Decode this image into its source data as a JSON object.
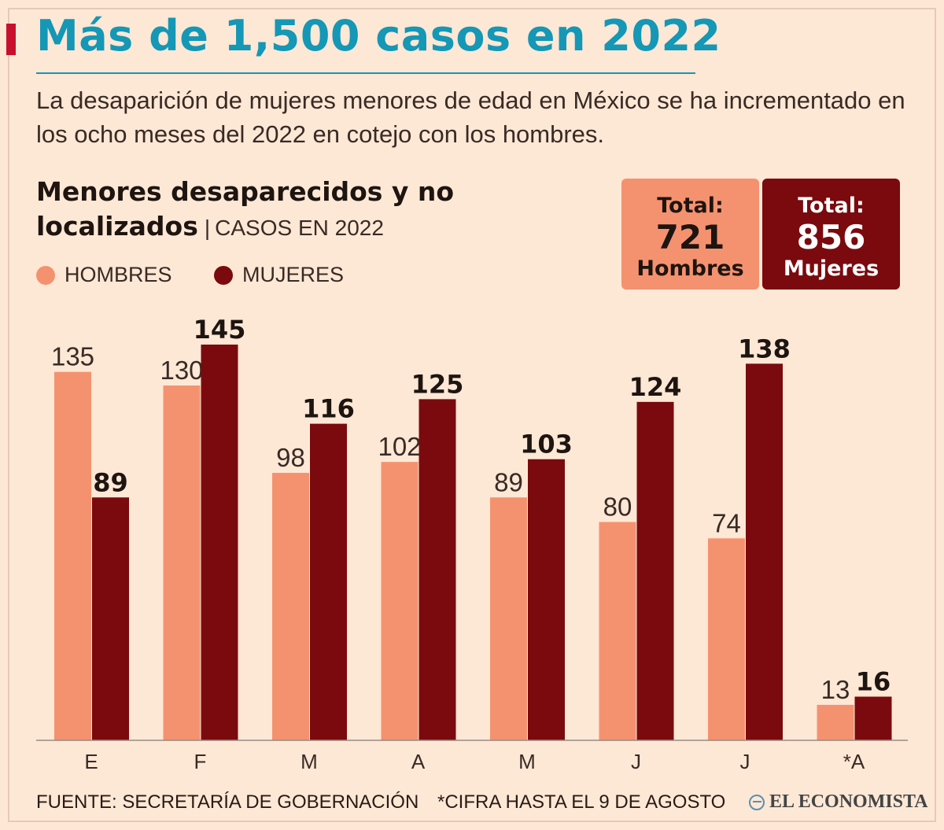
{
  "header": {
    "title": "Más de 1,500 casos en 2022",
    "subtitle": "La desaparición de mujeres menores de edad en México se ha incrementado en los ocho meses del 2022 en cotejo con los hombres."
  },
  "chart_header": {
    "title": "Menores desaparecidos y no localizados",
    "subtitle": "CASOS EN 2022"
  },
  "legend": {
    "men": "HOMBRES",
    "women": "MUJERES"
  },
  "totals": {
    "men": {
      "label": "Total:",
      "value": "721",
      "caption": "Hombres"
    },
    "women": {
      "label": "Total:",
      "value": "856",
      "caption": "Mujeres"
    }
  },
  "colors": {
    "men": "#f4926f",
    "women": "#7a0a0e",
    "title": "#1597b6",
    "accent": "#c8102e",
    "background": "#fde8d6"
  },
  "chart_data": {
    "type": "bar",
    "title": "Menores desaparecidos y no localizados",
    "subtitle": "CASOS EN 2022",
    "categories": [
      "E",
      "F",
      "M",
      "A",
      "M",
      "J",
      "J",
      "*A"
    ],
    "series": [
      {
        "name": "HOMBRES",
        "values": [
          135,
          130,
          98,
          102,
          89,
          80,
          74,
          13
        ]
      },
      {
        "name": "MUJERES",
        "values": [
          89,
          145,
          116,
          125,
          103,
          124,
          138,
          16
        ]
      }
    ],
    "ylim": [
      0,
      145
    ],
    "grid": false,
    "legend_position": "top-left"
  },
  "footer": {
    "source": "FUENTE: SECRETARÍA DE GOBERNACIÓN",
    "note": "*CIFRA HASTA EL 9 DE AGOSTO",
    "brand": "EL ECONOMISTA"
  }
}
